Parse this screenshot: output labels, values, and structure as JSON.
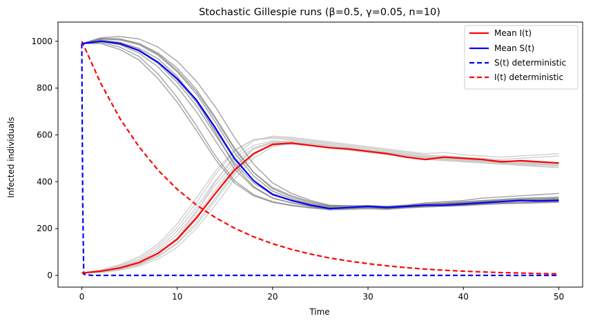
{
  "chart_data": {
    "type": "line",
    "title": "Stochastic Gillespie runs (β=0.5, γ=0.05, n=10)",
    "xlabel": "Time",
    "ylabel": "Infected individuals",
    "xlim": [
      -2.5,
      52.5
    ],
    "ylim": [
      -50,
      1082
    ],
    "xticks": [
      0,
      10,
      20,
      30,
      40,
      50
    ],
    "yticks": [
      0,
      200,
      400,
      600,
      800,
      1000
    ],
    "grid": false,
    "legend_position": "top-right",
    "series": [
      {
        "name": "Mean I(t)",
        "color": "#ff0000",
        "style": "solid",
        "x": [
          0,
          2,
          4,
          6,
          8,
          10,
          12,
          14,
          16,
          18,
          20,
          22,
          24,
          26,
          28,
          30,
          32,
          34,
          36,
          38,
          40,
          42,
          44,
          46,
          48,
          50
        ],
        "y": [
          10,
          18,
          32,
          55,
          95,
          155,
          245,
          350,
          450,
          520,
          560,
          565,
          555,
          545,
          540,
          530,
          520,
          505,
          495,
          505,
          500,
          495,
          485,
          490,
          485,
          480
        ]
      },
      {
        "name": "Mean S(t)",
        "color": "#0000ff",
        "style": "solid",
        "x": [
          0,
          2,
          4,
          6,
          8,
          10,
          12,
          14,
          16,
          18,
          20,
          22,
          24,
          26,
          28,
          30,
          32,
          34,
          36,
          38,
          40,
          42,
          44,
          46,
          48,
          50
        ],
        "y": [
          990,
          1000,
          990,
          960,
          910,
          840,
          750,
          630,
          500,
          405,
          345,
          320,
          300,
          285,
          290,
          295,
          290,
          295,
          300,
          300,
          305,
          310,
          315,
          320,
          318,
          320
        ]
      },
      {
        "name": "S(t) deterministic",
        "color": "#0000ff",
        "style": "dashed",
        "x": [
          0,
          0.05,
          0.1,
          0.2,
          1,
          10,
          20,
          30,
          40,
          50
        ],
        "y": [
          990,
          600,
          300,
          5,
          0,
          0,
          0,
          0,
          0,
          0
        ]
      },
      {
        "name": "I(t) deterministic",
        "color": "#ff0000",
        "style": "dashed",
        "x": [
          0,
          2,
          4,
          6,
          8,
          10,
          12,
          14,
          16,
          18,
          20,
          22,
          24,
          26,
          28,
          30,
          32,
          34,
          36,
          38,
          40,
          42,
          44,
          46,
          48,
          50
        ],
        "y": [
          1000,
          819,
          670,
          549,
          449,
          368,
          301,
          247,
          202,
          165,
          135,
          111,
          91,
          74,
          61,
          50,
          41,
          33,
          27,
          22,
          18,
          15,
          12,
          10,
          8,
          7
        ]
      }
    ],
    "runs": {
      "count": 10,
      "infected_color": "#c8c8c8",
      "susceptible_color": "#7a7a7a",
      "x": [
        0,
        2,
        4,
        6,
        8,
        10,
        12,
        14,
        16,
        18,
        20,
        22,
        24,
        26,
        28,
        30,
        32,
        34,
        36,
        38,
        40,
        42,
        44,
        46,
        48,
        50
      ],
      "infected": [
        [
          10,
          14,
          28,
          48,
          88,
          160,
          270,
          400,
          510,
          575,
          595,
          590,
          580,
          570,
          560,
          550,
          540,
          530,
          520,
          525,
          515,
          510,
          505,
          510,
          515,
          520
        ],
        [
          10,
          22,
          42,
          72,
          125,
          205,
          310,
          430,
          530,
          580,
          590,
          585,
          575,
          565,
          555,
          545,
          535,
          525,
          515,
          510,
          505,
          500,
          495,
          500,
          505,
          510
        ],
        [
          10,
          16,
          30,
          50,
          90,
          150,
          240,
          350,
          460,
          540,
          570,
          575,
          565,
          555,
          545,
          535,
          525,
          515,
          505,
          500,
          495,
          490,
          485,
          480,
          478,
          475
        ],
        [
          10,
          20,
          38,
          65,
          115,
          190,
          290,
          405,
          500,
          555,
          575,
          570,
          560,
          550,
          540,
          530,
          520,
          510,
          505,
          510,
          500,
          495,
          490,
          485,
          480,
          478
        ],
        [
          10,
          12,
          22,
          40,
          70,
          120,
          200,
          300,
          410,
          500,
          550,
          565,
          560,
          550,
          545,
          535,
          525,
          515,
          505,
          500,
          490,
          485,
          478,
          470,
          465,
          460
        ],
        [
          10,
          18,
          35,
          60,
          105,
          175,
          275,
          385,
          485,
          545,
          570,
          568,
          558,
          548,
          538,
          528,
          518,
          508,
          498,
          493,
          488,
          483,
          478,
          473,
          470,
          468
        ],
        [
          10,
          14,
          26,
          45,
          80,
          135,
          215,
          320,
          430,
          515,
          560,
          568,
          562,
          552,
          542,
          532,
          522,
          512,
          502,
          497,
          492,
          487,
          482,
          477,
          474,
          472
        ],
        [
          10,
          24,
          46,
          80,
          135,
          220,
          330,
          445,
          535,
          580,
          585,
          580,
          570,
          560,
          550,
          540,
          530,
          520,
          510,
          505,
          500,
          495,
          490,
          485,
          482,
          480
        ],
        [
          10,
          15,
          27,
          46,
          82,
          140,
          225,
          330,
          440,
          520,
          555,
          560,
          555,
          545,
          535,
          525,
          515,
          505,
          495,
          490,
          485,
          480,
          475,
          470,
          465,
          462
        ],
        [
          10,
          17,
          32,
          55,
          95,
          160,
          255,
          365,
          470,
          540,
          565,
          568,
          562,
          552,
          542,
          532,
          522,
          512,
          502,
          497,
          492,
          487,
          482,
          477,
          474,
          470
        ]
      ],
      "susceptible": [
        [
          990,
          1005,
          995,
          970,
          925,
          850,
          745,
          610,
          470,
          380,
          330,
          310,
          295,
          285,
          290,
          295,
          290,
          300,
          310,
          315,
          320,
          330,
          335,
          340,
          345,
          350
        ],
        [
          990,
          995,
          975,
          935,
          860,
          760,
          640,
          510,
          405,
          345,
          315,
          300,
          290,
          285,
          288,
          290,
          285,
          290,
          295,
          298,
          300,
          305,
          310,
          312,
          315,
          318
        ],
        [
          990,
          1010,
          1010,
          990,
          950,
          885,
          795,
          675,
          545,
          440,
          370,
          335,
          310,
          295,
          295,
          298,
          295,
          300,
          305,
          308,
          310,
          315,
          318,
          320,
          322,
          325
        ],
        [
          990,
          1000,
          985,
          950,
          890,
          805,
          700,
          575,
          455,
          375,
          330,
          310,
          295,
          285,
          285,
          288,
          285,
          290,
          295,
          298,
          300,
          305,
          308,
          310,
          312,
          315
        ],
        [
          990,
          1015,
          1020,
          1010,
          975,
          915,
          830,
          720,
          590,
          475,
          395,
          350,
          320,
          300,
          298,
          298,
          295,
          300,
          305,
          310,
          315,
          320,
          325,
          330,
          332,
          335
        ],
        [
          990,
          1000,
          990,
          960,
          905,
          825,
          725,
          600,
          480,
          395,
          345,
          318,
          300,
          290,
          290,
          292,
          290,
          295,
          300,
          303,
          306,
          310,
          314,
          318,
          320,
          322
        ],
        [
          990,
          1010,
          1005,
          985,
          940,
          870,
          775,
          655,
          525,
          425,
          360,
          328,
          305,
          292,
          292,
          294,
          290,
          296,
          302,
          306,
          310,
          315,
          320,
          324,
          326,
          328
        ],
        [
          990,
          990,
          965,
          920,
          840,
          740,
          620,
          495,
          395,
          340,
          312,
          298,
          288,
          280,
          282,
          285,
          282,
          288,
          292,
          295,
          298,
          302,
          306,
          308,
          310,
          312
        ],
        [
          990,
          1012,
          1010,
          990,
          945,
          875,
          785,
          670,
          540,
          440,
          375,
          340,
          315,
          298,
          296,
          296,
          292,
          298,
          304,
          308,
          312,
          318,
          322,
          326,
          328,
          330
        ],
        [
          990,
          1005,
          995,
          965,
          910,
          835,
          740,
          620,
          495,
          405,
          350,
          322,
          302,
          290,
          290,
          292,
          288,
          294,
          300,
          304,
          308,
          312,
          316,
          320,
          322,
          324
        ]
      ]
    }
  }
}
